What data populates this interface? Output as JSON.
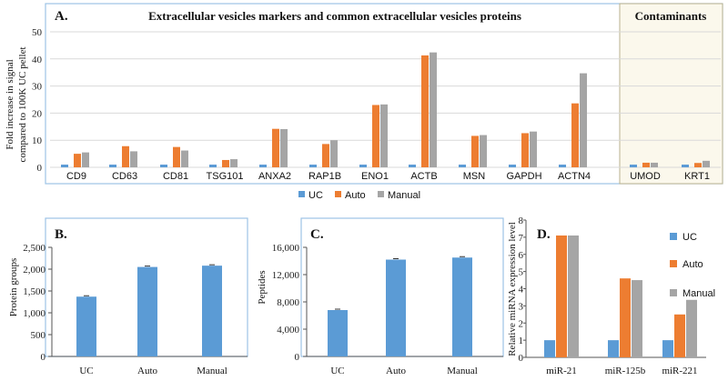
{
  "colors": {
    "UC": "#5b9bd5",
    "Auto": "#ed7d31",
    "Manual": "#a5a5a5",
    "frame": "#9dc3e6",
    "contam_bg": "#fbf8ec"
  },
  "chart_data": [
    {
      "type": "bar",
      "panel": "A.",
      "title": "Extracellular vesicles markers and common extracellular vesicles proteins",
      "subtitle": "Contaminants",
      "ylabel_line1": "Fold increase in signal",
      "ylabel_line2": "compared to 100K UC pellet",
      "ylim": [
        0,
        50
      ],
      "yticks": [
        "0",
        "10",
        "20",
        "30",
        "40",
        "50"
      ],
      "categories": [
        "CD9",
        "CD63",
        "CD81",
        "TSG101",
        "ANXA2",
        "RAP1B",
        "ENO1",
        "ACTB",
        "MSN",
        "GAPDH",
        "ACTN4",
        "UMOD",
        "KRT1"
      ],
      "series": [
        {
          "name": "UC",
          "values": [
            1,
            1,
            1,
            1,
            1,
            1,
            1,
            1,
            1,
            1,
            1,
            1,
            1
          ]
        },
        {
          "name": "Auto",
          "values": [
            5,
            7.8,
            7.5,
            2.7,
            14.2,
            8.6,
            23,
            41.3,
            11.6,
            12.6,
            23.6,
            1.7,
            1.6
          ]
        },
        {
          "name": "Manual",
          "values": [
            5.5,
            5.9,
            6.2,
            3,
            14.1,
            10,
            23.2,
            42.4,
            11.9,
            13.2,
            34.7,
            1.7,
            2.4
          ]
        }
      ],
      "legend": [
        "UC",
        "Auto",
        "Manual"
      ],
      "legend_position": "bottom"
    },
    {
      "type": "bar",
      "panel": "B.",
      "ylabel": "Protein groups",
      "ylim": [
        0,
        2500
      ],
      "yticks": [
        "0",
        "500",
        "1,000",
        "1,500",
        "2,000",
        "2,500"
      ],
      "categories": [
        "UC",
        "Auto",
        "Manual"
      ],
      "values": [
        1370,
        2050,
        2080
      ]
    },
    {
      "type": "bar",
      "panel": "C.",
      "ylabel": "Peptides",
      "ylim": [
        0,
        16000
      ],
      "yticks": [
        "0",
        "4,000",
        "8,000",
        "12,000",
        "16,000"
      ],
      "categories": [
        "UC",
        "Auto",
        "Manual"
      ],
      "values": [
        6800,
        14200,
        14500
      ]
    },
    {
      "type": "bar",
      "panel": "D.",
      "ylabel": "Relative miRNA expression level",
      "ylim": [
        0,
        8
      ],
      "yticks": [
        "0",
        "1",
        "2",
        "3",
        "4",
        "5",
        "6",
        "7",
        "8"
      ],
      "categories": [
        "miR-21",
        "miR-125b",
        "miR-221"
      ],
      "series": [
        {
          "name": "UC",
          "values": [
            1,
            1,
            1
          ]
        },
        {
          "name": "Auto",
          "values": [
            7.1,
            4.6,
            2.5
          ]
        },
        {
          "name": "Manual",
          "values": [
            7.1,
            4.5,
            3.35
          ]
        }
      ],
      "legend": [
        "UC",
        "Auto",
        "Manual"
      ],
      "legend_position": "right"
    }
  ]
}
